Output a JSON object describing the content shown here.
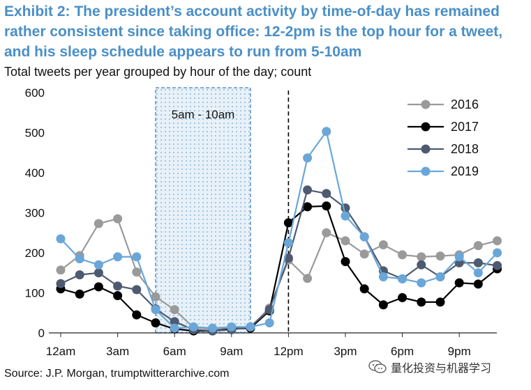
{
  "title": "Exhibit 2: The president’s account activity by time-of-day has remained rather consistent since taking office: 12-2pm is the top hour for a tweet, and his sleep schedule appears to run from 5-10am",
  "subtitle": "Total tweets per year grouped by hour of the day; count",
  "source": "Source: J.P. Morgan, trumptwitterarchive.com",
  "watermark": "量化投资与机器学习",
  "chart_data": {
    "type": "line",
    "title": "Exhibit 2",
    "ylabel": "Total tweets per year grouped by hour of the day; count",
    "ylim": [
      0,
      600
    ],
    "yticks": [
      0,
      100,
      200,
      300,
      400,
      500,
      600
    ],
    "x": [
      0,
      1,
      2,
      3,
      4,
      5,
      6,
      7,
      8,
      9,
      10,
      11,
      12,
      13,
      14,
      15,
      16,
      17,
      18,
      19,
      20,
      21,
      22,
      23
    ],
    "xtick_positions": [
      0,
      3,
      6,
      9,
      12,
      15,
      18,
      21
    ],
    "xtick_labels": [
      "12am",
      "3am",
      "6am",
      "9am",
      "12pm",
      "3pm",
      "6pm",
      "9pm"
    ],
    "shaded_region": {
      "from": 5,
      "to": 10,
      "label": "5am - 10am"
    },
    "vline": {
      "x": 12
    },
    "legend_position": "top-right",
    "series": [
      {
        "name": "2016",
        "color": "#9a9a9a",
        "values": [
          157,
          193,
          273,
          285,
          152,
          90,
          58,
          13,
          10,
          12,
          15,
          62,
          182,
          136,
          250,
          230,
          197,
          220,
          195,
          190,
          192,
          195,
          218,
          230
        ]
      },
      {
        "name": "2017",
        "color": "#000000",
        "values": [
          110,
          97,
          115,
          93,
          45,
          25,
          10,
          5,
          5,
          10,
          12,
          55,
          275,
          315,
          317,
          178,
          110,
          70,
          88,
          77,
          77,
          125,
          122,
          160
        ]
      },
      {
        "name": "2018",
        "color": "#4d5a70",
        "values": [
          123,
          145,
          150,
          117,
          108,
          60,
          28,
          8,
          5,
          8,
          15,
          58,
          187,
          357,
          348,
          312,
          240,
          155,
          135,
          170,
          140,
          175,
          175,
          168
        ]
      },
      {
        "name": "2019",
        "color": "#6aa6d8",
        "values": [
          235,
          185,
          170,
          190,
          190,
          58,
          12,
          15,
          12,
          15,
          15,
          25,
          225,
          437,
          503,
          292,
          240,
          140,
          135,
          125,
          140,
          190,
          150,
          200
        ]
      }
    ]
  }
}
